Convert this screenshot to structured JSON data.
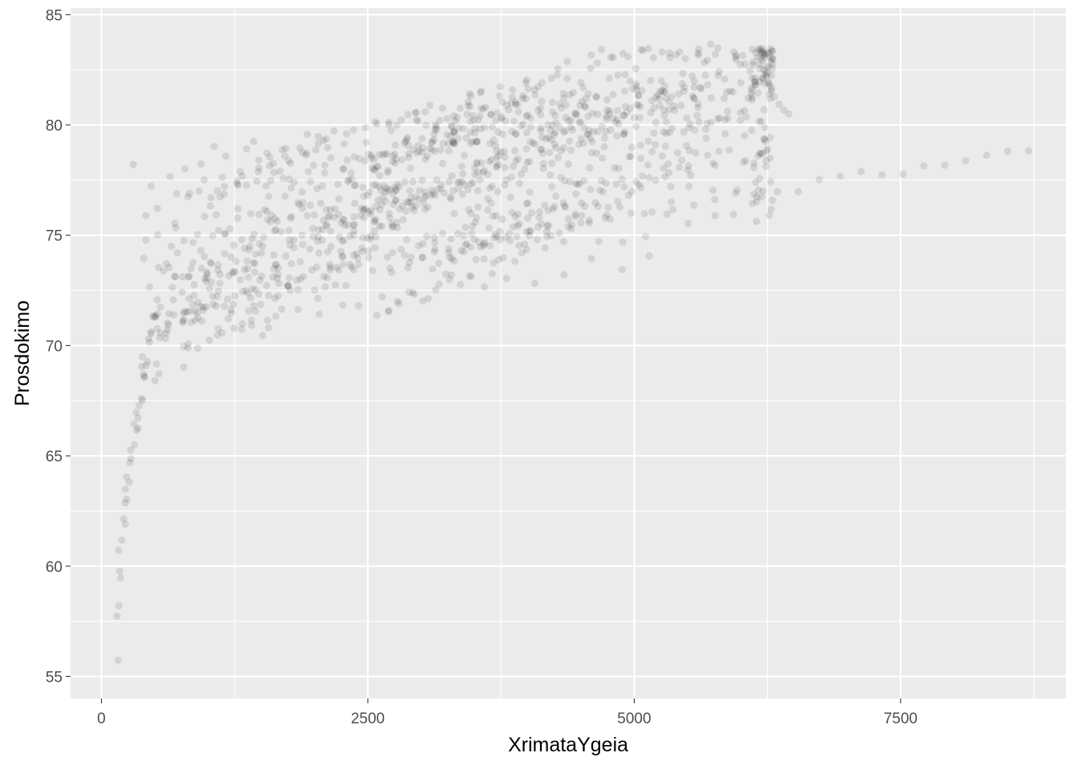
{
  "chart_data": {
    "type": "scatter",
    "title": "",
    "xlabel": "XrimataYgeia",
    "ylabel": "Prosdokimo",
    "xlim": [
      -290,
      9050
    ],
    "ylim": [
      54,
      85.3
    ],
    "x_ticks": [
      0,
      2500,
      5000,
      7500
    ],
    "x_tick_labels": [
      "0",
      "2500",
      "5000",
      "7500"
    ],
    "y_ticks": [
      55,
      60,
      65,
      70,
      75,
      80,
      85
    ],
    "y_tick_labels": [
      "55",
      "60",
      "65",
      "70",
      "75",
      "80",
      "85"
    ],
    "grid": true,
    "legend": "none",
    "colors": {
      "panel": "#ebebeb",
      "grid_major": "#ffffff",
      "point": "#000000",
      "point_alpha": 0.1
    },
    "point_count": 960
  }
}
